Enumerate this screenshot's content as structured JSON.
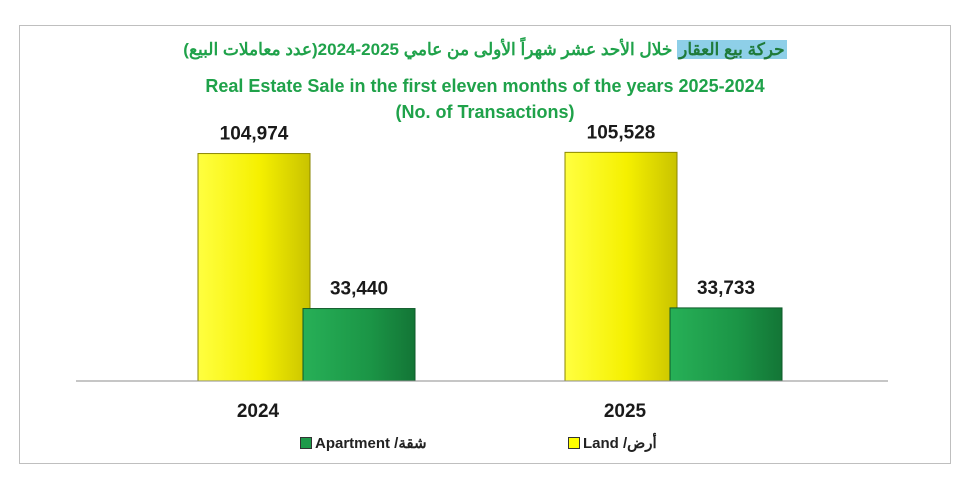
{
  "chart_data": {
    "type": "bar",
    "title_arabic_highlight": "حركة بيع العقار",
    "title_arabic_rest": "خلال الأحد عشر شهراً الأولى من عامي 2025-2024(عدد معاملات البيع)",
    "title": "Real Estate Sale in the first eleven  months of the years 2025-2024",
    "subtitle": "(No. of Transactions)",
    "categories": [
      "2024",
      "2025"
    ],
    "series": [
      {
        "name": "أرض/ Land",
        "color": "#ffff00",
        "values": [
          104974,
          105528
        ],
        "labels": [
          "104,974",
          "105,528"
        ]
      },
      {
        "name": "شقة/ Apartment",
        "color": "#1e9a4a",
        "values": [
          33440,
          33733
        ],
        "labels": [
          "33,440",
          "33,733"
        ]
      }
    ],
    "ylim": [
      0,
      120000
    ],
    "grid": false,
    "legend_position": "bottom"
  },
  "legend": {
    "apartment_label": "Apartment /شقة",
    "land_label": "Land /أرض"
  }
}
